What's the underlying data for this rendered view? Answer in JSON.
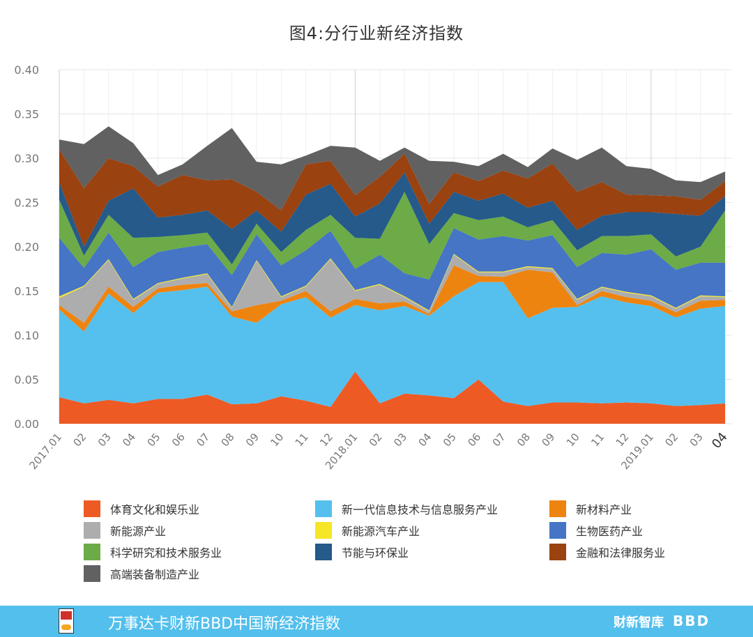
{
  "chart_data": {
    "type": "area",
    "stacked": true,
    "title": "图4:分行业新经济指数",
    "x": [
      "2017.01",
      "02",
      "03",
      "04",
      "05",
      "06",
      "07",
      "08",
      "09",
      "10",
      "11",
      "12",
      "2018.01",
      "02",
      "03",
      "04",
      "05",
      "06",
      "07",
      "08",
      "09",
      "10",
      "11",
      "12",
      "2019.01",
      "02",
      "03",
      "04"
    ],
    "ylim": [
      0,
      0.4
    ],
    "yticks": [
      "0.00",
      "0.05",
      "0.10",
      "0.15",
      "0.20",
      "0.25",
      "0.30",
      "0.35",
      "0.40"
    ],
    "grid": true,
    "legend_position": "bottom",
    "series": [
      {
        "name": "体育文化和娱乐业",
        "color": "#ee5a24",
        "values": [
          0.03,
          0.023,
          0.027,
          0.023,
          0.028,
          0.028,
          0.033,
          0.022,
          0.023,
          0.031,
          0.026,
          0.019,
          0.059,
          0.023,
          0.034,
          0.032,
          0.029,
          0.05,
          0.025,
          0.02,
          0.024,
          0.024,
          0.023,
          0.024,
          0.023,
          0.02,
          0.021,
          0.023
        ]
      },
      {
        "name": "新一代信息技术与信息服务产业",
        "color": "#55c0ed",
        "values": [
          0.099,
          0.081,
          0.12,
          0.102,
          0.12,
          0.123,
          0.122,
          0.099,
          0.091,
          0.104,
          0.117,
          0.101,
          0.075,
          0.105,
          0.099,
          0.09,
          0.115,
          0.11,
          0.135,
          0.099,
          0.107,
          0.108,
          0.121,
          0.113,
          0.11,
          0.1,
          0.109,
          0.11
        ]
      },
      {
        "name": "新材料产业",
        "color": "#ee8410",
        "values": [
          0.005,
          0.01,
          0.008,
          0.007,
          0.005,
          0.006,
          0.004,
          0.006,
          0.02,
          0.004,
          0.007,
          0.007,
          0.007,
          0.008,
          0.005,
          0.002,
          0.035,
          0.007,
          0.006,
          0.055,
          0.04,
          0.002,
          0.006,
          0.006,
          0.006,
          0.006,
          0.009,
          0.007
        ]
      },
      {
        "name": "新能源产业",
        "color": "#adadad",
        "values": [
          0.008,
          0.041,
          0.03,
          0.008,
          0.005,
          0.007,
          0.01,
          0.004,
          0.05,
          0.004,
          0.005,
          0.059,
          0.009,
          0.021,
          0.005,
          0.003,
          0.012,
          0.004,
          0.005,
          0.003,
          0.004,
          0.006,
          0.004,
          0.005,
          0.005,
          0.004,
          0.005,
          0.003
        ]
      },
      {
        "name": "新能源汽车产业",
        "color": "#f5e626",
        "values": [
          0.002,
          0.001,
          0.001,
          0.001,
          0.001,
          0.001,
          0.001,
          0.001,
          0.001,
          0.001,
          0.001,
          0.001,
          0.001,
          0.001,
          0.001,
          0.001,
          0.001,
          0.001,
          0.001,
          0.001,
          0.001,
          0.001,
          0.001,
          0.001,
          0.001,
          0.001,
          0.001,
          0.001
        ]
      },
      {
        "name": "生物医药产业",
        "color": "#4575c4",
        "values": [
          0.066,
          0.02,
          0.03,
          0.036,
          0.035,
          0.034,
          0.033,
          0.036,
          0.029,
          0.035,
          0.04,
          0.031,
          0.024,
          0.033,
          0.026,
          0.035,
          0.029,
          0.036,
          0.04,
          0.029,
          0.037,
          0.036,
          0.038,
          0.042,
          0.052,
          0.043,
          0.037,
          0.038
        ]
      },
      {
        "name": "科学研究和技术服务业",
        "color": "#6cab47",
        "values": [
          0.043,
          0.014,
          0.02,
          0.033,
          0.017,
          0.014,
          0.013,
          0.012,
          0.012,
          0.015,
          0.023,
          0.018,
          0.035,
          0.018,
          0.092,
          0.04,
          0.017,
          0.022,
          0.022,
          0.015,
          0.017,
          0.019,
          0.019,
          0.021,
          0.017,
          0.015,
          0.018,
          0.059
        ]
      },
      {
        "name": "节能与环保业",
        "color": "#255a8a",
        "values": [
          0.02,
          0.01,
          0.016,
          0.056,
          0.022,
          0.023,
          0.025,
          0.04,
          0.015,
          0.023,
          0.04,
          0.035,
          0.024,
          0.04,
          0.022,
          0.023,
          0.024,
          0.022,
          0.026,
          0.022,
          0.022,
          0.023,
          0.023,
          0.027,
          0.025,
          0.048,
          0.035,
          0.016
        ]
      },
      {
        "name": "金融和法律服务业",
        "color": "#9a4210",
        "values": [
          0.037,
          0.066,
          0.048,
          0.025,
          0.035,
          0.045,
          0.034,
          0.056,
          0.021,
          0.024,
          0.034,
          0.026,
          0.024,
          0.03,
          0.021,
          0.022,
          0.022,
          0.022,
          0.026,
          0.033,
          0.042,
          0.043,
          0.038,
          0.02,
          0.019,
          0.02,
          0.018,
          0.017
        ]
      },
      {
        "name": "高端装备制造产业",
        "color": "#616161",
        "values": [
          0.011,
          0.05,
          0.036,
          0.026,
          0.013,
          0.012,
          0.039,
          0.058,
          0.034,
          0.052,
          0.01,
          0.017,
          0.054,
          0.018,
          0.007,
          0.049,
          0.012,
          0.017,
          0.019,
          0.013,
          0.017,
          0.036,
          0.039,
          0.032,
          0.03,
          0.018,
          0.02,
          0.011
        ]
      }
    ]
  },
  "footer": {
    "title": "万事达卡财新BBD中国新经济指数",
    "brand_left": "财新智库",
    "brand_right": "BBD"
  }
}
